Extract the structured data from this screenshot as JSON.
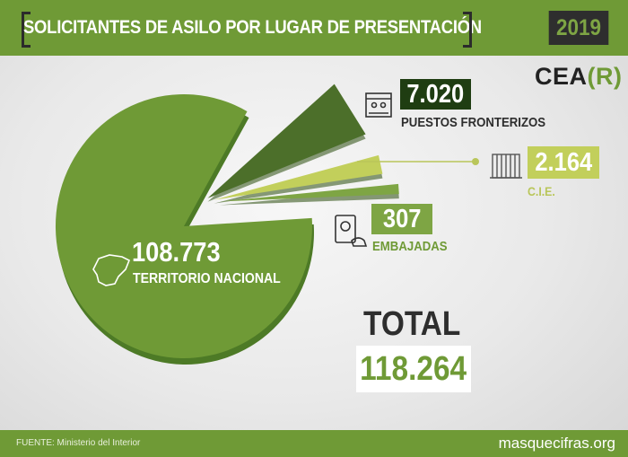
{
  "header": {
    "title": "SOLICITANTES DE ASILO POR LUGAR DE PRESENTACIÓN",
    "year": "2019"
  },
  "logo": {
    "text_a": "CEA",
    "text_b": "(R)"
  },
  "total": {
    "label": "TOTAL",
    "value": "118.264"
  },
  "footer": {
    "source": "FUENTE: Ministerio del Interior",
    "site": "masquecifras.org"
  },
  "colors": {
    "green": "#6f9a36",
    "dark_green": "#4c6f2a",
    "lime": "#c2cf5b",
    "dark": "#2e2e2e"
  },
  "chart_data": {
    "type": "pie",
    "title": "SOLICITANTES DE ASILO POR LUGAR DE PRESENTACIÓN",
    "series": [
      {
        "name": "TERRITORIO NACIONAL",
        "value": 108773,
        "display": "108.773",
        "color": "#6f9a36",
        "icon": "spain-map-icon"
      },
      {
        "name": "PUESTOS FRONTERIZOS",
        "value": 7020,
        "display": "7.020",
        "color": "#4c6f2a",
        "icon": "border-post-icon"
      },
      {
        "name": "C.I.E.",
        "value": 2164,
        "display": "2.164",
        "color": "#c2cf5b",
        "icon": "building-icon"
      },
      {
        "name": "EMBAJADAS",
        "value": 307,
        "display": "307",
        "color": "#7ea544",
        "icon": "passport-icon"
      }
    ],
    "total": 118264,
    "legend": "none"
  }
}
